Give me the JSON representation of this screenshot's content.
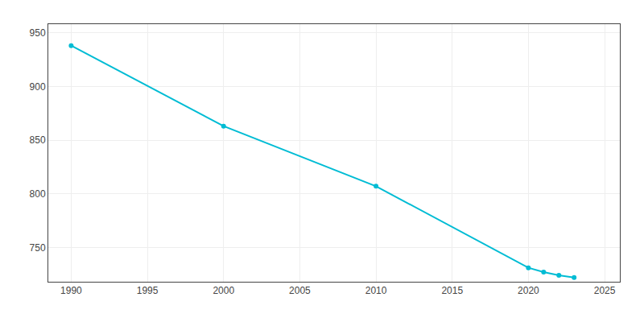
{
  "chart_data": {
    "type": "line",
    "x": [
      1990,
      2000,
      2010,
      2020,
      2021,
      2022,
      2023
    ],
    "values": [
      938,
      863,
      807,
      731,
      727,
      724,
      722
    ],
    "color": "#00bcd4",
    "marker": "circle",
    "xlim": [
      1988.5,
      2026
    ],
    "ylim": [
      718,
      958
    ],
    "xticks": [
      1990,
      1995,
      2000,
      2005,
      2010,
      2015,
      2020,
      2025
    ],
    "yticks": [
      750,
      800,
      850,
      900,
      950
    ],
    "grid": true
  }
}
